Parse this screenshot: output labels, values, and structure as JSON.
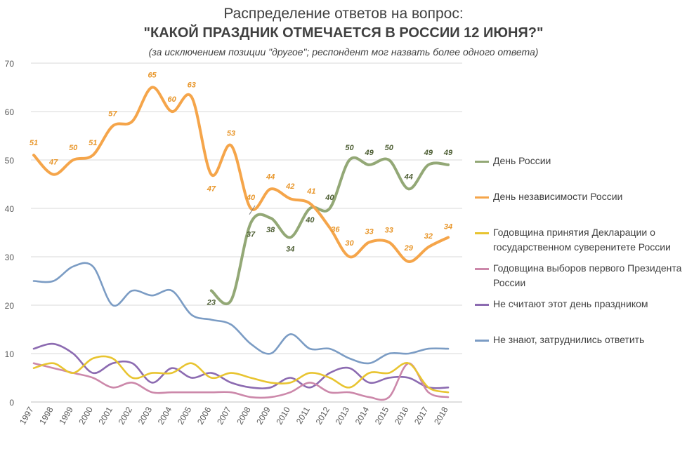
{
  "header": {
    "title": "Распределение ответов на вопрос:",
    "subtitle": "\"КАКОЙ ПРАЗДНИК ОТМЕЧАЕТСЯ  В РОССИИ 12 ИЮНЯ?\"",
    "note": "(за исключением позиции \"другое\"; респондент мог назвать более одного ответа)"
  },
  "chart_data": {
    "type": "line",
    "title": "Распределение ответов на вопрос: \"КАКОЙ ПРАЗДНИК ОТМЕЧАЕТСЯ  В РОССИИ 12 ИЮНЯ?\"",
    "x": [
      "1997",
      "1998",
      "1999",
      "2000",
      "2001",
      "2002",
      "2003",
      "2004",
      "2005",
      "2006",
      "2007",
      "2008",
      "2009",
      "2010",
      "2011",
      "2012",
      "2013",
      "2014",
      "2015",
      "2016",
      "2017",
      "2018"
    ],
    "yticks": [
      "0",
      "10",
      "20",
      "30",
      "40",
      "50",
      "60",
      "70"
    ],
    "ylim": [
      0,
      70
    ],
    "grid": true,
    "legend_position": "right",
    "series": [
      {
        "name": "День России",
        "color": "#93a876",
        "values": [
          null,
          null,
          null,
          null,
          null,
          null,
          null,
          null,
          null,
          23,
          21,
          37,
          38,
          34,
          40,
          40,
          50,
          49,
          50,
          44,
          49,
          49
        ],
        "labels": [
          null,
          null,
          null,
          null,
          null,
          null,
          null,
          null,
          null,
          "23",
          null,
          "37",
          "38",
          "34",
          "40",
          "40",
          "50",
          "49",
          "50",
          "44",
          "49",
          "49"
        ]
      },
      {
        "name": "День независимости России",
        "color": "#f5a54a",
        "values": [
          51,
          47,
          50,
          51,
          57,
          58,
          65,
          60,
          63,
          47,
          53,
          40,
          44,
          42,
          41,
          36,
          30,
          33,
          33,
          29,
          32,
          34
        ],
        "labels": [
          "51",
          "47",
          "50",
          "51",
          "57",
          null,
          "65",
          "60",
          "63",
          "47",
          "53",
          "40",
          "44",
          "42",
          "41",
          "36",
          "30",
          "33",
          "33",
          "29",
          "32",
          "34"
        ]
      },
      {
        "name": "Годовщина принятия Декларации о государственном суверенитете России",
        "color": "#e8c430",
        "values": [
          7,
          8,
          6,
          9,
          9,
          5,
          6,
          6,
          8,
          5,
          6,
          5,
          4,
          4,
          6,
          5,
          3,
          6,
          6,
          8,
          3,
          2
        ]
      },
      {
        "name": "Годовщина выборов первого Президента России",
        "color": "#cc88aa",
        "values": [
          8,
          7,
          6,
          5,
          3,
          4,
          2,
          2,
          2,
          2,
          2,
          1,
          1,
          2,
          4,
          2,
          2,
          1,
          1,
          8,
          2,
          1
        ]
      },
      {
        "name": "Не считают этот день праздником",
        "color": "#8c6bb1",
        "values": [
          11,
          12,
          10,
          6,
          8,
          8,
          4,
          7,
          5,
          6,
          4,
          3,
          3,
          5,
          3,
          6,
          7,
          4,
          5,
          5,
          3,
          3
        ]
      },
      {
        "name": "Не знают, затруднились ответить",
        "color": "#7b9cc4",
        "values": [
          25,
          25,
          28,
          28,
          20,
          23,
          22,
          23,
          18,
          17,
          16,
          12,
          10,
          14,
          11,
          11,
          9,
          8,
          10,
          10,
          11,
          11
        ]
      }
    ]
  }
}
